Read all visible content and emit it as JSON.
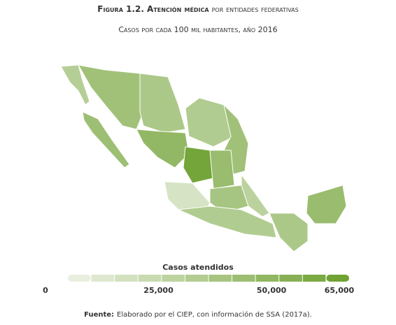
{
  "chart_data": {
    "type": "choropleth",
    "title": [
      "Figura 1.2. Atención médica",
      "por entidades federativas"
    ],
    "subtitle": "Casos por cada 100 mil habitantes, año 2016",
    "legend_title": "Casos atendidos",
    "values": [
      28000,
      40000,
      38000,
      33000,
      30000,
      38000,
      45000,
      60000,
      42000,
      12000,
      35000,
      30000,
      25000,
      33000,
      42000
    ],
    "color_low": "#eef3e6",
    "color_high": "#6a9e2c",
    "clim": [
      0,
      65000
    ],
    "cticks": [
      0,
      {
        "value": 25000,
        "label": "25,000"
      },
      {
        "value": 50000,
        "label": "50,000"
      },
      {
        "value": 65000,
        "label": "65,000"
      }
    ],
    "source": [
      "Fuente:",
      "Elaborado por el CIEP, con información de SSA (2017a)."
    ]
  }
}
